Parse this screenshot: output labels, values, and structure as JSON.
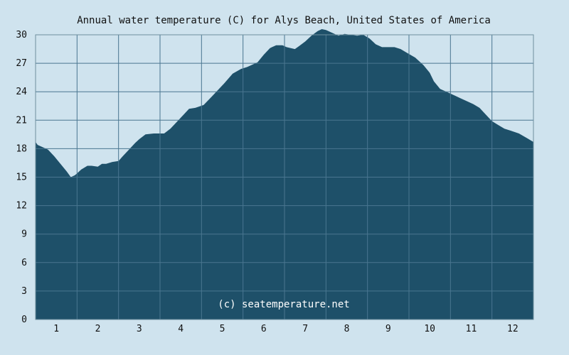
{
  "chart_data": {
    "type": "area",
    "title": "Annual water temperature (C) for Alys Beach, United States of America",
    "watermark": "(c) seatemperature.net",
    "xlabel": "",
    "ylabel": "",
    "x_ticks": [
      "1",
      "2",
      "3",
      "4",
      "5",
      "6",
      "7",
      "8",
      "9",
      "10",
      "11",
      "12"
    ],
    "y_ticks": [
      0,
      3,
      6,
      9,
      12,
      15,
      18,
      21,
      24,
      27,
      30
    ],
    "xlim": [
      0.5,
      12.5
    ],
    "ylim": [
      0,
      30
    ],
    "grid": true,
    "colors": {
      "fill": "#1e5069",
      "background": "#cfe3ee",
      "grid": "#4a7690",
      "axis": "#6f8f9f"
    },
    "series": [
      {
        "x": [
          0.5,
          0.55,
          0.65,
          0.8,
          0.95,
          1.1,
          1.25,
          1.35,
          1.45,
          1.5,
          1.6,
          1.75,
          1.85,
          2.0,
          2.1,
          2.2,
          2.35,
          2.5,
          2.6,
          2.75,
          2.9,
          3.0,
          3.15,
          3.35,
          3.6,
          3.75,
          3.9,
          4.05,
          4.2,
          4.35,
          4.55,
          4.75,
          4.9,
          5.05,
          5.25,
          5.45,
          5.6,
          5.85,
          6.0,
          6.15,
          6.3,
          6.45,
          6.55,
          6.75,
          6.85,
          7.0,
          7.15,
          7.3,
          7.4,
          7.5,
          7.65,
          7.8,
          7.95,
          8.1,
          8.25,
          8.4,
          8.55,
          8.7,
          8.85,
          9.0,
          9.15,
          9.3,
          9.45,
          9.65,
          9.85,
          10.0,
          10.1,
          10.25,
          10.45,
          10.6,
          10.75,
          10.9,
          11.05,
          11.2,
          11.35,
          11.5,
          11.65,
          11.8,
          11.95,
          12.15,
          12.35,
          12.5
        ],
        "y": [
          18.7,
          18.4,
          18.2,
          17.9,
          17.2,
          16.4,
          15.6,
          15.0,
          15.2,
          15.4,
          15.8,
          16.2,
          16.2,
          16.1,
          16.4,
          16.4,
          16.6,
          16.7,
          17.2,
          17.9,
          18.6,
          19.0,
          19.5,
          19.6,
          19.6,
          20.1,
          20.8,
          21.5,
          22.2,
          22.3,
          22.6,
          23.5,
          24.2,
          24.9,
          25.9,
          26.4,
          26.6,
          27.1,
          27.9,
          28.6,
          28.9,
          28.9,
          28.7,
          28.5,
          28.8,
          29.3,
          29.9,
          30.4,
          30.6,
          30.5,
          30.2,
          29.9,
          30.1,
          30.0,
          29.9,
          30.0,
          29.6,
          29.0,
          28.7,
          28.7,
          28.7,
          28.5,
          28.1,
          27.6,
          26.8,
          26.0,
          25.1,
          24.3,
          23.9,
          23.6,
          23.3,
          23.0,
          22.7,
          22.3,
          21.6,
          20.9,
          20.5,
          20.1,
          19.9,
          19.6,
          19.1,
          18.7
        ]
      }
    ]
  }
}
